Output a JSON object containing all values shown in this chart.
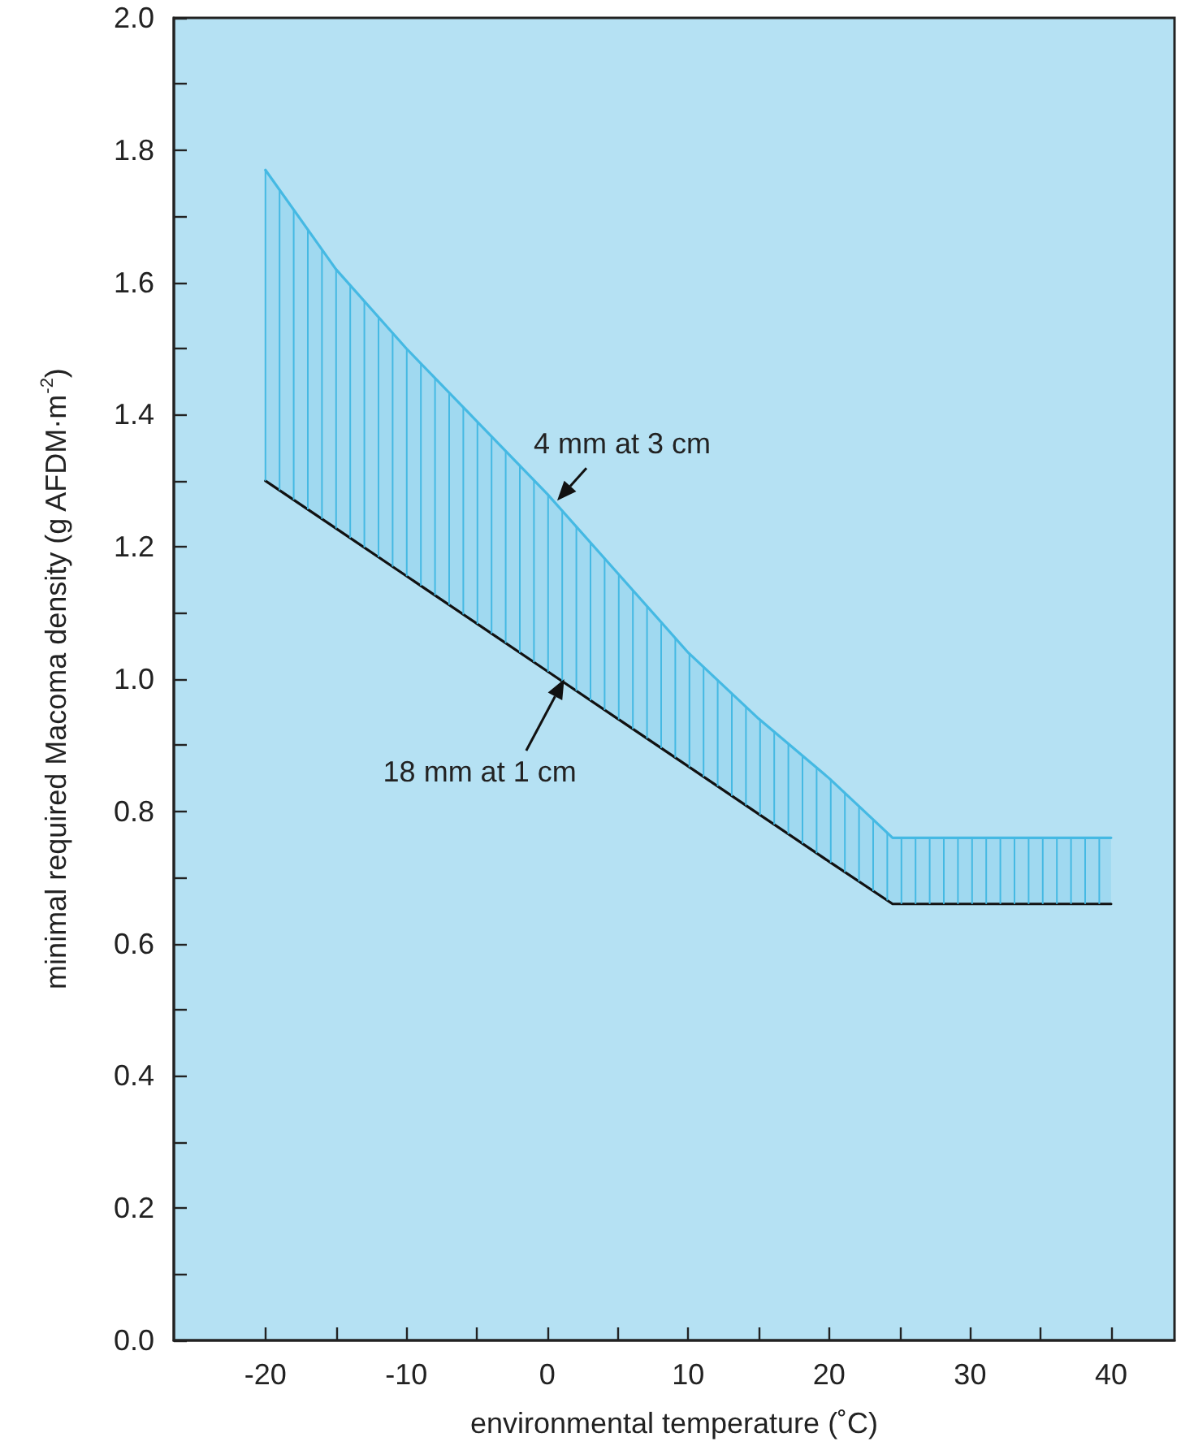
{
  "chart_data": {
    "type": "line",
    "xlabel": "environmental temperature (˚C)",
    "ylabel": "minimal required Macoma density (g AFDM·m$^{-2}$)",
    "x": [
      -20,
      -15,
      -10,
      -5,
      0,
      5,
      10,
      15,
      20,
      24.5,
      40
    ],
    "series": [
      {
        "color": "#45b9e3",
        "values": [
          1.77,
          1.62,
          1.5,
          1.39,
          1.28,
          1.16,
          1.04,
          0.94,
          0.85,
          0.76,
          0.76
        ],
        "lower": [
          1.3,
          1.228,
          1.156,
          1.084,
          1.012,
          0.94,
          0.868,
          0.796,
          0.724,
          0.66,
          0.66
        ],
        "upper": [
          1.77,
          1.62,
          1.5,
          1.39,
          1.28,
          1.16,
          1.04,
          0.94,
          0.85,
          0.76,
          0.76
        ]
      },
      {
        "color": "#111111",
        "values": [
          1.3,
          1.228,
          1.156,
          1.084,
          1.012,
          0.94,
          0.868,
          0.796,
          0.724,
          0.66,
          0.66
        ]
      }
    ],
    "xlim": [
      -26.5,
      44.5
    ],
    "xticks": [
      -20,
      {
        "value": -15,
        "label": null
      },
      -10,
      {
        "value": -5,
        "label": null
      },
      0,
      {
        "value": 5,
        "label": null
      },
      10,
      {
        "value": 15,
        "label": null
      },
      20,
      {
        "value": 25,
        "label": null
      },
      30,
      {
        "value": 35,
        "label": null
      },
      40
    ],
    "ylim": [
      0,
      2
    ],
    "yticks": [
      {
        "value": 0,
        "label": "0.0"
      },
      {
        "value": 0.1,
        "label": null
      },
      0.2,
      {
        "value": 0.3,
        "label": null
      },
      0.4,
      {
        "value": 0.5,
        "label": null
      },
      0.6,
      {
        "value": 0.7,
        "label": null
      },
      0.8,
      {
        "value": 0.9,
        "label": null
      },
      {
        "value": 1,
        "label": "1.0"
      },
      {
        "value": 1.1,
        "label": null
      },
      1.2,
      {
        "value": 1.3,
        "label": null
      },
      1.4,
      {
        "value": 1.5,
        "label": null
      },
      1.6,
      {
        "value": 1.7,
        "label": null
      },
      1.8,
      {
        "value": 1.9,
        "label": null
      },
      {
        "value": 2,
        "label": "2.0"
      }
    ],
    "annotations": [
      {
        "text": "4 mm at 3 cm",
        "x": 0.7,
        "y": 1.27
      },
      {
        "text": "18 mm at 1 cm",
        "x": 1.2,
        "y": 1.0
      }
    ],
    "grid": false,
    "marker": "none",
    "line_style": "solid"
  }
}
